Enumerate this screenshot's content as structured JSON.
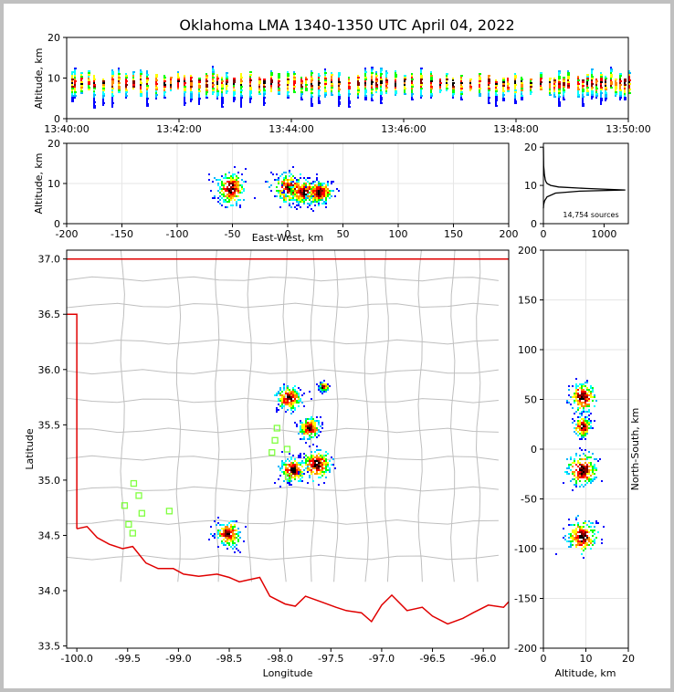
{
  "title": "Oklahoma LMA 1340-1350 UTC April 04, 2022",
  "colors": {
    "palette": [
      "#0000ff",
      "#00b4ff",
      "#00ffff",
      "#00ff00",
      "#ffff00",
      "#ff8c00",
      "#ff0000",
      "#800000",
      "#000000"
    ],
    "state_border": "#e00000",
    "county_lines": "#bfbfbf",
    "stations": "#80ff40"
  },
  "panels": {
    "time_height": {
      "ylabel": "Altitude, km",
      "ylim": [
        0,
        20
      ],
      "yticks": [
        "0",
        "10",
        "20"
      ],
      "xlim": [
        0,
        600
      ],
      "xticks": [
        {
          "v": 0,
          "label": "13:40:00"
        },
        {
          "v": 120,
          "label": "13:42:00"
        },
        {
          "v": 240,
          "label": "13:44:00"
        },
        {
          "v": 360,
          "label": "13:46:00"
        },
        {
          "v": 480,
          "label": "13:48:00"
        },
        {
          "v": 600,
          "label": "13:50:00"
        }
      ]
    },
    "ew_height": {
      "xlabel": "East-West, km",
      "ylabel": "Altitude, km",
      "xlim": [
        -200,
        200
      ],
      "ylim": [
        0,
        20
      ],
      "xticks": [
        "-200",
        "-150",
        "-100",
        "-50",
        "0",
        "50",
        "100",
        "150",
        "200"
      ],
      "yticks": [
        "0",
        "10",
        "20"
      ]
    },
    "histogram": {
      "xlim": [
        0,
        1400
      ],
      "ylim": [
        0,
        21
      ],
      "xticks": [
        "0",
        "1000"
      ],
      "yticks": [
        "0",
        "10",
        "20"
      ],
      "annotation": "14,754 sources"
    },
    "plan": {
      "xlabel": "Longitude",
      "ylabel": "Latitude",
      "xlim": [
        -100.1,
        -95.75
      ],
      "ylim": [
        33.48,
        37.08
      ],
      "xticks": [
        "-100.0",
        "-99.5",
        "-99.0",
        "-98.5",
        "-98.0",
        "-97.5",
        "-97.0",
        "-96.5",
        "-96.0"
      ],
      "yticks": [
        "33.5",
        "34.0",
        "34.5",
        "35.0",
        "35.5",
        "36.0",
        "36.5",
        "37.0"
      ]
    },
    "ns_height": {
      "xlabel": "Altitude, km",
      "ylabel": "North-South, km",
      "xlim": [
        0,
        20
      ],
      "ylim": [
        -200,
        200
      ],
      "xticks": [
        "0",
        "10",
        "20"
      ],
      "yticks": [
        "-200",
        "-150",
        "-100",
        "-50",
        "0",
        "50",
        "100",
        "150",
        "200"
      ]
    }
  },
  "chart_data": [
    {
      "type": "scatter",
      "panel": "time_height",
      "description_units": "seconds after 13:40:00 vs altitude km",
      "source_columns_x_seconds": [
        5,
        8,
        15,
        22,
        28,
        38,
        48,
        55,
        62,
        70,
        78,
        85,
        95,
        103,
        110,
        118,
        125,
        132,
        140,
        148,
        155,
        160,
        165,
        170,
        178,
        185,
        195,
        205,
        210,
        218,
        225,
        235,
        242,
        250,
        255,
        260,
        268,
        275,
        282,
        290,
        300,
        310,
        318,
        325,
        330,
        335,
        340,
        350,
        360,
        368,
        378,
        388,
        398,
        405,
        412,
        420,
        430,
        440,
        450,
        458,
        465,
        470,
        478,
        485,
        495,
        505,
        515,
        520,
        525,
        530,
        535,
        545,
        550,
        555,
        560,
        565,
        570,
        575,
        580,
        585,
        590,
        595,
        600
      ],
      "altitude_range_km": [
        2,
        13
      ],
      "typical_altitude_km": 9
    },
    {
      "type": "scatter",
      "panel": "ew_height",
      "clusters": [
        {
          "x_km": -52,
          "alt_km": 9,
          "x_spread_km": 6,
          "alt_spread_km": 2
        },
        {
          "x_km": 2,
          "alt_km": 9,
          "x_spread_km": 8,
          "alt_spread_km": 1.8
        },
        {
          "x_km": 15,
          "alt_km": 8,
          "x_spread_km": 8,
          "alt_spread_km": 1.5
        },
        {
          "x_km": 28,
          "alt_km": 8,
          "x_spread_km": 6,
          "alt_spread_km": 1.4
        }
      ]
    },
    {
      "type": "line",
      "panel": "histogram",
      "x_counts": [
        0,
        5,
        20,
        60,
        200,
        600,
        1350,
        700,
        250,
        120,
        60,
        40,
        30,
        25,
        20,
        15,
        10,
        5,
        0
      ],
      "y_alt_km": [
        4,
        5,
        6,
        7,
        8,
        8.5,
        8.8,
        9.2,
        9.6,
        10,
        10.5,
        11,
        11.5,
        12,
        12.5,
        13,
        14,
        15,
        20
      ],
      "total_sources": 14754
    },
    {
      "type": "scatter",
      "panel": "plan",
      "clusters": [
        {
          "lon": -98.52,
          "lat": 34.52,
          "spread": 0.06
        },
        {
          "lon": -97.92,
          "lat": 35.75,
          "spread": 0.06
        },
        {
          "lon": -97.58,
          "lat": 35.85,
          "spread": 0.02
        },
        {
          "lon": -97.72,
          "lat": 35.48,
          "spread": 0.05
        },
        {
          "lon": -97.88,
          "lat": 35.1,
          "spread": 0.06
        },
        {
          "lon": -97.65,
          "lat": 35.15,
          "spread": 0.07
        }
      ],
      "stations": [
        {
          "lon": -99.44,
          "lat": 34.97
        },
        {
          "lon": -99.39,
          "lat": 34.86
        },
        {
          "lon": -99.53,
          "lat": 34.77
        },
        {
          "lon": -99.36,
          "lat": 34.7
        },
        {
          "lon": -99.49,
          "lat": 34.6
        },
        {
          "lon": -99.45,
          "lat": 34.52
        },
        {
          "lon": -99.09,
          "lat": 34.72
        },
        {
          "lon": -98.03,
          "lat": 35.47
        },
        {
          "lon": -98.05,
          "lat": 35.36
        },
        {
          "lon": -98.08,
          "lat": 35.25
        },
        {
          "lon": -97.93,
          "lat": 35.28
        },
        {
          "lon": -97.92,
          "lat": 35.03
        }
      ]
    },
    {
      "type": "scatter",
      "panel": "ns_height",
      "clusters": [
        {
          "alt_km": 9,
          "ns_km": 53,
          "alt_spread_km": 1.5,
          "ns_spread_km": 7
        },
        {
          "alt_km": 9,
          "ns_km": 23,
          "alt_spread_km": 1.0,
          "ns_spread_km": 5
        },
        {
          "alt_km": 9,
          "ns_km": -20,
          "alt_spread_km": 1.8,
          "ns_spread_km": 8
        },
        {
          "alt_km": 9,
          "ns_km": -87,
          "alt_spread_km": 1.8,
          "ns_spread_km": 8
        }
      ]
    }
  ]
}
